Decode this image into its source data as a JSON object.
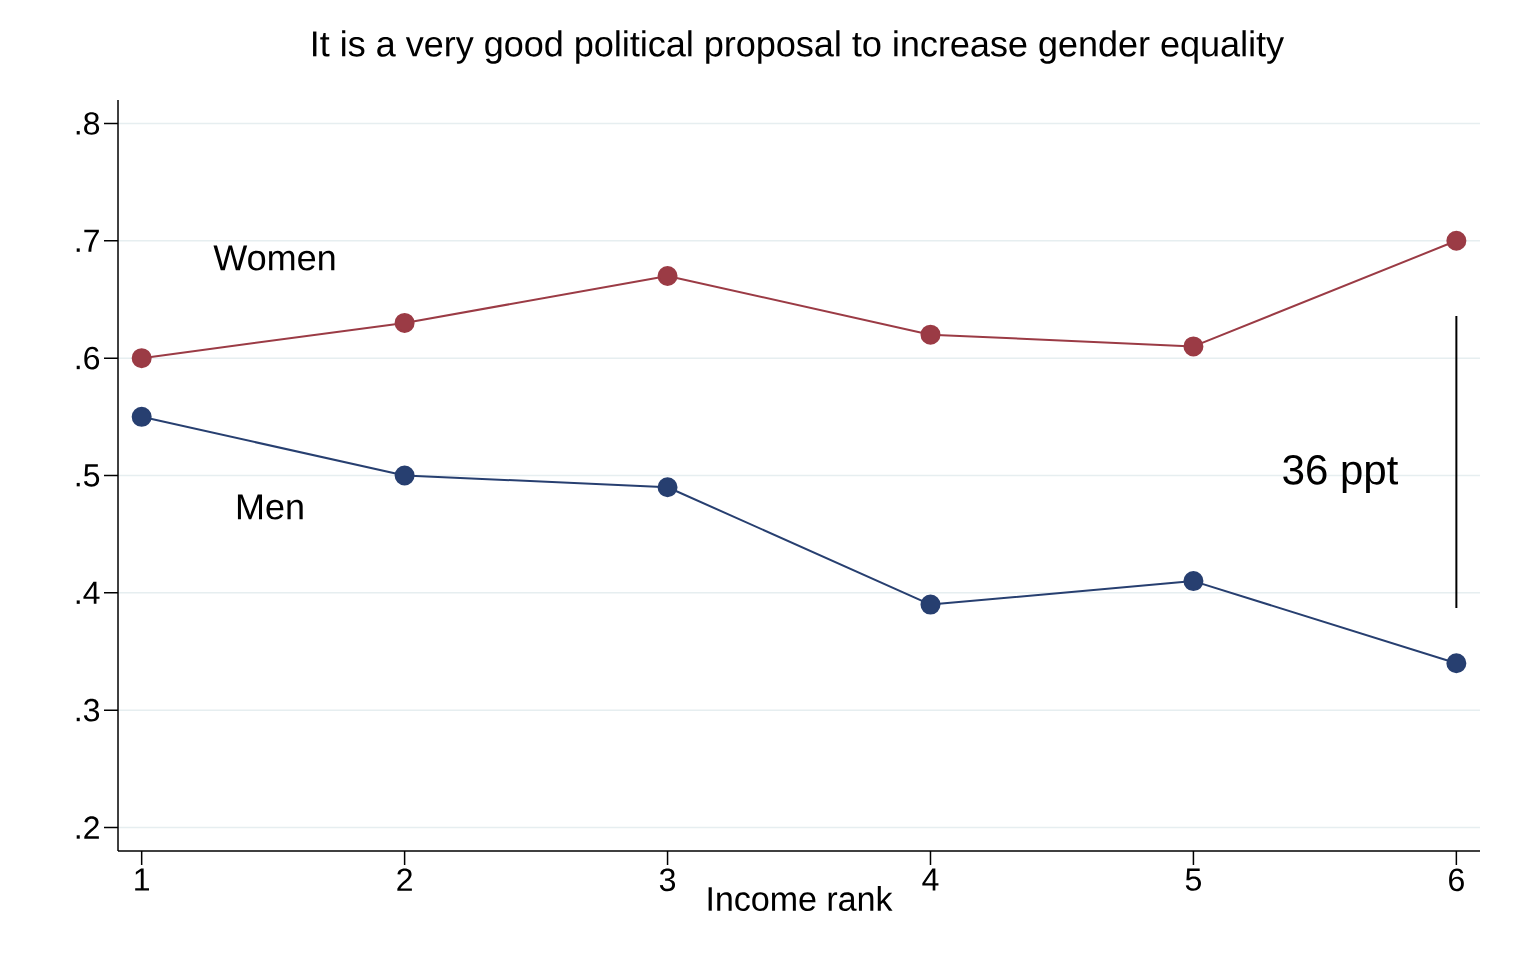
{
  "chart_data": {
    "type": "line",
    "title": "It is a very good political proposal to increase gender equality",
    "xlabel": "Income rank",
    "x": [
      1,
      2,
      3,
      4,
      5,
      6
    ],
    "series": [
      {
        "color": "#9b3b45",
        "values": [
          0.6,
          0.63,
          0.67,
          0.62,
          0.61,
          0.7
        ]
      },
      {
        "color": "#273f70",
        "values": [
          0.55,
          0.5,
          0.49,
          0.39,
          0.41,
          0.34
        ]
      },
      {
        "color": "#000000",
        "x": [
          6,
          6
        ],
        "values": [
          0.636,
          0.387
        ],
        "marker": "none"
      }
    ],
    "annotations": [
      "Women",
      "Men",
      "36 ppt"
    ],
    "xlim": [
      0.91,
      6.09
    ],
    "ylim": [
      0.18,
      0.82
    ],
    "xticks": [
      1,
      2,
      3,
      4,
      5,
      6
    ],
    "yticks": [
      {
        "value": 0.2,
        "label": ".2"
      },
      {
        "value": 0.3,
        "label": ".3"
      },
      {
        "value": 0.4,
        "label": ".4"
      },
      {
        "value": 0.5,
        "label": ".5"
      },
      {
        "value": 0.6,
        "label": ".6"
      },
      {
        "value": 0.7,
        "label": ".7"
      },
      {
        "value": 0.8,
        "label": ".8"
      }
    ],
    "grid": "y",
    "marker": "circle",
    "line_style": "solid"
  }
}
